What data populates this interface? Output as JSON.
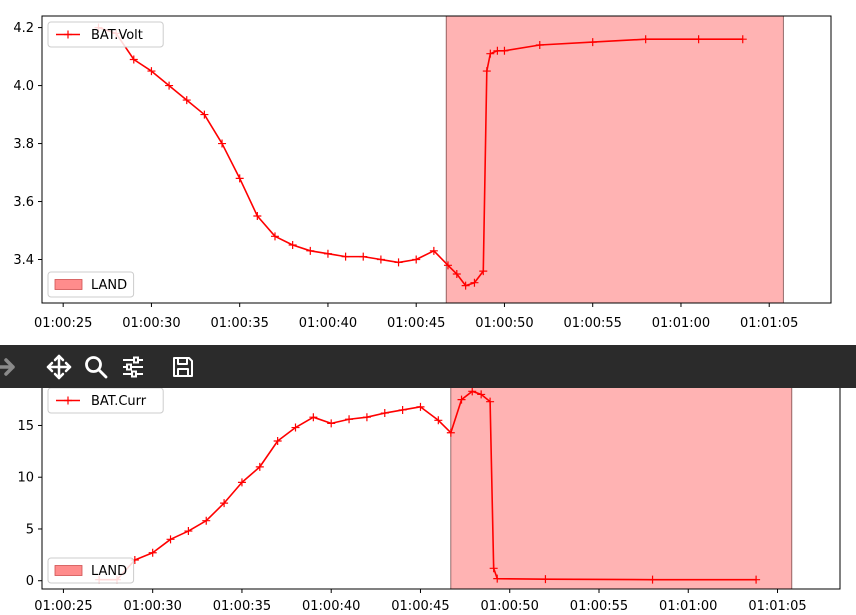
{
  "toolbar": {
    "buttons": [
      {
        "name": "forward-icon",
        "label": "Forward"
      },
      {
        "name": "pan-icon",
        "label": "Pan"
      },
      {
        "name": "zoom-icon",
        "label": "Zoom"
      },
      {
        "name": "configure-subplots-icon",
        "label": "Configure subplots"
      },
      {
        "name": "save-icon",
        "label": "Save"
      }
    ]
  },
  "chart_data": [
    {
      "type": "line",
      "x_tick_labels": [
        "01:00:25",
        "01:00:30",
        "01:00:35",
        "01:00:40",
        "01:00:45",
        "01:00:50",
        "01:00:55",
        "01:01:00",
        "01:01:05"
      ],
      "x_tick_seconds": [
        25,
        30,
        35,
        40,
        45,
        50,
        55,
        60,
        65
      ],
      "xlim": [
        23.8,
        68.5
      ],
      "ylim": [
        3.25,
        4.24
      ],
      "y_ticks": [
        3.4,
        3.6,
        3.8,
        4.0,
        4.2
      ],
      "y_tick_labels": [
        "3.4",
        "3.6",
        "3.8",
        "4.0",
        "4.2"
      ],
      "color": "#ff0000",
      "series": [
        {
          "name": "BAT.Volt",
          "x": [
            27,
            28,
            29,
            30,
            31,
            32,
            33,
            34,
            35,
            36,
            37,
            38,
            39,
            40,
            41,
            42,
            43,
            44,
            45,
            46,
            46.8,
            47.3,
            47.8,
            48.3,
            48.8,
            49.0,
            49.2,
            49.6,
            50,
            52,
            55,
            58,
            61,
            63.5
          ],
          "y": [
            4.2,
            4.18,
            4.09,
            4.05,
            4.0,
            3.95,
            3.9,
            3.8,
            3.68,
            3.55,
            3.48,
            3.45,
            3.43,
            3.42,
            3.41,
            3.41,
            3.4,
            3.39,
            3.4,
            3.43,
            3.38,
            3.35,
            3.31,
            3.32,
            3.36,
            4.05,
            4.11,
            4.12,
            4.12,
            4.14,
            4.15,
            4.16,
            4.16,
            4.16
          ]
        }
      ],
      "spans": [
        {
          "label": "LAND",
          "x0": 46.7,
          "x1": 65.8,
          "color": "#ff8080"
        }
      ],
      "legends": [
        {
          "entries": [
            "BAT.Volt"
          ],
          "placement": "upper left"
        },
        {
          "entries": [
            "LAND"
          ],
          "placement": "lower left"
        }
      ]
    },
    {
      "type": "line",
      "x_tick_labels": [
        "01:00:25",
        "01:00:30",
        "01:00:35",
        "01:00:40",
        "01:00:45",
        "01:00:50",
        "01:00:55",
        "01:01:00",
        "01:01:05"
      ],
      "x_tick_seconds": [
        25,
        30,
        35,
        40,
        45,
        50,
        55,
        60,
        65
      ],
      "xlim": [
        23.8,
        68.5
      ],
      "ylim": [
        -0.8,
        19.2
      ],
      "y_ticks": [
        0,
        5,
        10,
        15
      ],
      "y_tick_labels": [
        "0",
        "5",
        "10",
        "15"
      ],
      "color": "#ff0000",
      "series": [
        {
          "name": "BAT.Curr",
          "x": [
            27,
            28,
            29,
            30,
            31,
            32,
            33,
            34,
            35,
            36,
            37,
            38,
            39,
            40,
            41,
            42,
            43,
            44,
            45,
            46,
            46.7,
            47.3,
            47.9,
            48.4,
            48.9,
            49.1,
            49.3,
            52,
            58,
            63.8
          ],
          "y": [
            0.1,
            0.1,
            2.0,
            2.7,
            4.0,
            4.8,
            5.8,
            7.5,
            9.5,
            11.0,
            13.5,
            14.8,
            15.8,
            15.2,
            15.6,
            15.8,
            16.2,
            16.5,
            16.8,
            15.5,
            14.3,
            17.5,
            18.3,
            18.0,
            17.3,
            1.2,
            0.2,
            0.15,
            0.1,
            0.1
          ]
        }
      ],
      "spans": [
        {
          "label": "LAND",
          "x0": 46.7,
          "x1": 65.8,
          "color": "#ff8080"
        }
      ],
      "legends": [
        {
          "entries": [
            "BAT.Curr"
          ],
          "placement": "upper left"
        },
        {
          "entries": [
            "LAND"
          ],
          "placement": "lower left"
        }
      ]
    }
  ]
}
